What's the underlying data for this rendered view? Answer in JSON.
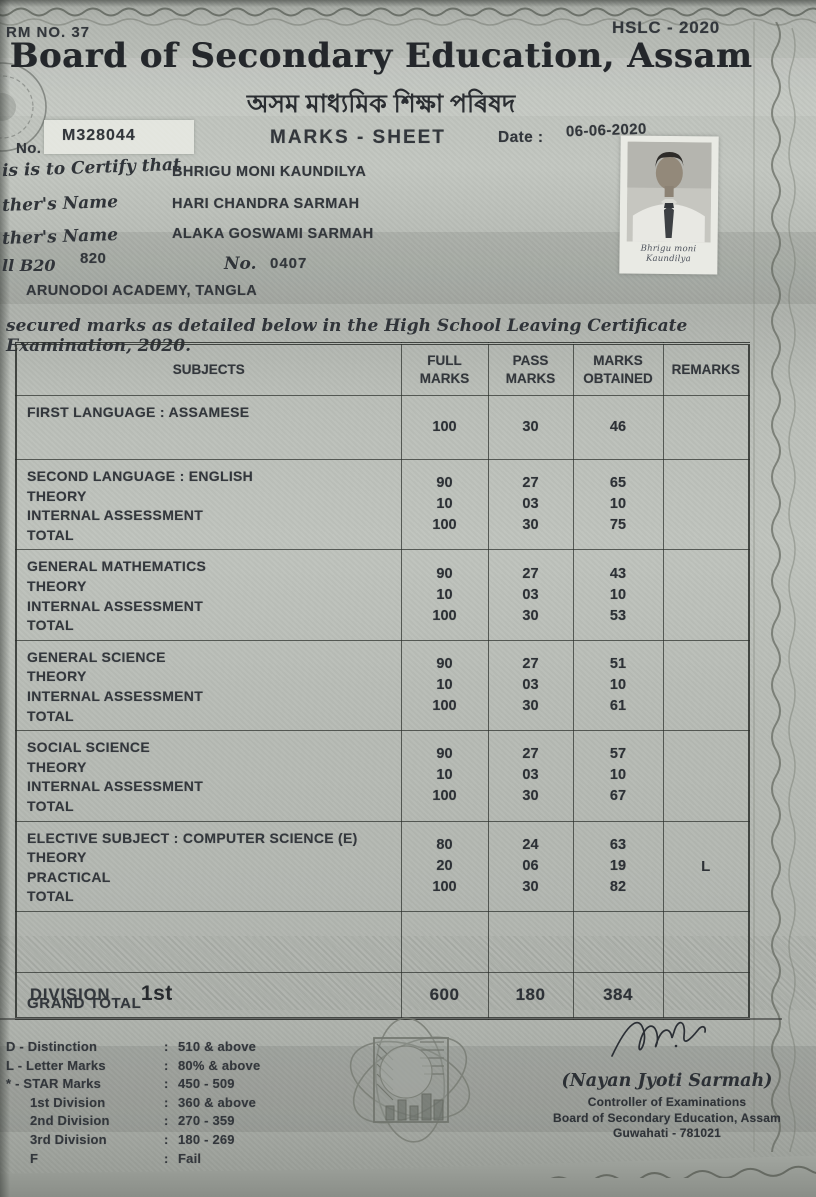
{
  "header": {
    "form_no": "RM NO. 37",
    "exam_tag": "HSLC - 2020",
    "board_en": "Board of Secondary Education, Assam",
    "board_as": "অসম মাধ্যমিক শিক্ষা পৰিষদ",
    "no_label": "No.",
    "serial_no": "M328044",
    "sheet_title": "MARKS - SHEET",
    "date_label": "Date :",
    "date_value": "06-06-2020"
  },
  "student": {
    "certify_label": "is is to Certify that",
    "name": "BHRIGU MONI KAUNDILYA",
    "father_label": "ther's Name",
    "father_name": "HARI CHANDRA SARMAH",
    "mother_label": "ther's Name",
    "mother_name": "ALAKA GOSWAMI SARMAH",
    "roll_label": "ll  B20",
    "roll_value": "820",
    "no_label": "No.",
    "no_value": "0407",
    "school": "ARUNODOI ACADEMY, TANGLA",
    "photo_signature": "Bhrigu moni Kaundilya"
  },
  "statement": "secured marks as detailed below in the High School Leaving Certificate Examination, 2020.",
  "table": {
    "headers": [
      "SUBJECTS",
      "FULL\nMARKS",
      "PASS\nMARKS",
      "MARKS\nOBTAINED",
      "REMARKS"
    ],
    "rows": [
      {
        "subject": "FIRST LANGUAGE : ASSAMESE",
        "full": "100",
        "pass": "30",
        "obtained": "46",
        "remarks": ""
      },
      {
        "subject": "SECOND LANGUAGE : ENGLISH\nTHEORY\nINTERNAL ASSESSMENT\nTOTAL",
        "full": "90\n10\n100",
        "pass": "27\n03\n30",
        "obtained": "65\n10\n75",
        "remarks": ""
      },
      {
        "subject": "GENERAL MATHEMATICS\nTHEORY\nINTERNAL ASSESSMENT\nTOTAL",
        "full": "90\n10\n100",
        "pass": "27\n03\n30",
        "obtained": "43\n10\n53",
        "remarks": ""
      },
      {
        "subject": "GENERAL SCIENCE\nTHEORY\nINTERNAL ASSESSMENT\nTOTAL",
        "full": "90\n10\n100",
        "pass": "27\n03\n30",
        "obtained": "51\n10\n61",
        "remarks": ""
      },
      {
        "subject": "SOCIAL SCIENCE\nTHEORY\nINTERNAL ASSESSMENT\nTOTAL",
        "full": "90\n10\n100",
        "pass": "27\n03\n30",
        "obtained": "57\n10\n67",
        "remarks": ""
      },
      {
        "subject": "ELECTIVE SUBJECT : COMPUTER SCIENCE (E)\nTHEORY\nPRACTICAL\nTOTAL",
        "full": "80\n20\n100",
        "pass": "24\n06\n30",
        "obtained": "63\n19\n82",
        "remarks": "L"
      },
      {
        "subject": "",
        "full": "",
        "pass": "",
        "obtained": "",
        "remarks": ""
      }
    ],
    "grand_total": {
      "label": "GRAND TOTAL",
      "full": "600",
      "pass": "180",
      "obtained": "384",
      "remarks": ""
    }
  },
  "division": {
    "label": "DIVISION",
    "value": "1st"
  },
  "legend": [
    {
      "label": "D - Distinction",
      "value": "510 & above"
    },
    {
      "label": "L - Letter Marks",
      "value": "80% & above"
    },
    {
      "label": "* - STAR Marks",
      "value": "450 - 509"
    },
    {
      "label": "1st Division",
      "value": "360 & above"
    },
    {
      "label": "2nd Division",
      "value": "270 - 359"
    },
    {
      "label": "3rd Division",
      "value": "180 - 269"
    },
    {
      "label": "F",
      "value": "Fail"
    }
  ],
  "signature": {
    "name": "(Nayan Jyoti Sarmah)",
    "title1": "Controller of Examinations",
    "title2": "Board of Secondary Education, Assam",
    "title3": "Guwahati - 781021"
  },
  "colors": {
    "paper": "#b8bcb6",
    "ink": "#2e3134",
    "border": "#2d302d"
  }
}
